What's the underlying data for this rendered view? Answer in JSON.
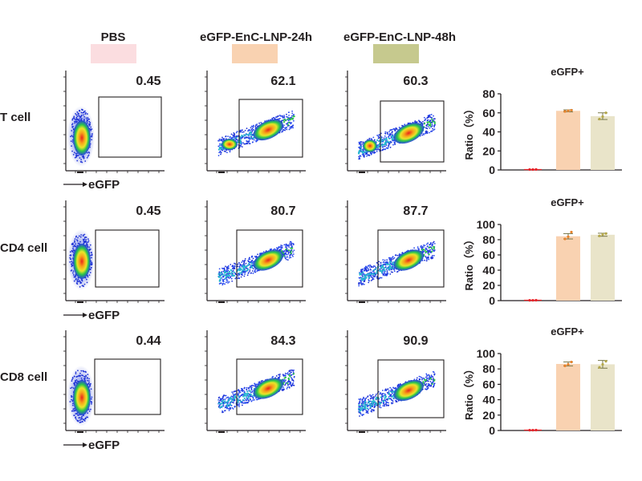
{
  "groups": [
    {
      "label": "PBS",
      "color": "#fbdde0"
    },
    {
      "label": "eGFP-EnC-LNP-24h",
      "color": "#f9d2b1"
    },
    {
      "label": "eGFP-EnC-LNP-48h",
      "color": "#c6c98e"
    }
  ],
  "row_labels": [
    "T cell",
    "CD4 cell",
    "CD8 cell"
  ],
  "axis_label": "eGFP",
  "flow_percentages": [
    [
      "0.45",
      "62.1",
      "60.3"
    ],
    [
      "0.45",
      "80.7",
      "87.7"
    ],
    [
      "0.44",
      "84.3",
      "90.9"
    ]
  ],
  "chart_data": [
    {
      "type": "bar",
      "title": "eGFP+",
      "ylabel": "Ratio（%）",
      "ylim": [
        0,
        80
      ],
      "yticks": [
        0,
        20,
        40,
        60,
        80
      ],
      "categories": [
        "PBS",
        "eGFP-EnC-LNP-24h",
        "eGFP-EnC-LNP-48h"
      ],
      "values": [
        0.45,
        62.1,
        56.5
      ],
      "errors": [
        0.05,
        1.0,
        3.5
      ],
      "points": [
        [
          0.4,
          0.45,
          0.5
        ],
        [
          61.5,
          62.2,
          62.8
        ],
        [
          53.5,
          56.0,
          60.0
        ]
      ],
      "colors": [
        "#fbdde0",
        "#f9d2b1",
        "#e9e4c9"
      ],
      "point_colors": [
        "#e8242a",
        "#e8822a",
        "#b5a84a"
      ]
    },
    {
      "type": "bar",
      "title": "eGFP+",
      "ylabel": "Ratio（%）",
      "ylim": [
        0,
        100
      ],
      "yticks": [
        0,
        20,
        40,
        60,
        80,
        100
      ],
      "categories": [
        "PBS",
        "eGFP-EnC-LNP-24h",
        "eGFP-EnC-LNP-48h"
      ],
      "values": [
        0.45,
        84.5,
        86.5
      ],
      "errors": [
        0.05,
        3.5,
        2.0
      ],
      "points": [
        [
          0.4,
          0.45,
          0.5
        ],
        [
          81.0,
          84.0,
          90.0
        ],
        [
          85.0,
          87.0,
          88.0
        ]
      ],
      "colors": [
        "#fbdde0",
        "#f9d2b1",
        "#e9e4c9"
      ],
      "point_colors": [
        "#e8242a",
        "#e8822a",
        "#b5a84a"
      ]
    },
    {
      "type": "bar",
      "title": "eGFP+",
      "ylabel": "Ratio（%）",
      "ylim": [
        0,
        100
      ],
      "yticks": [
        0,
        20,
        40,
        60,
        80,
        100
      ],
      "categories": [
        "PBS",
        "eGFP-EnC-LNP-24h",
        "eGFP-EnC-LNP-48h"
      ],
      "values": [
        0.44,
        86.5,
        86.0
      ],
      "errors": [
        0.05,
        2.5,
        5.0
      ],
      "points": [
        [
          0.4,
          0.44,
          0.5
        ],
        [
          84.0,
          86.0,
          89.0
        ],
        [
          82.0,
          86.0,
          90.0
        ]
      ],
      "colors": [
        "#fbdde0",
        "#f9d2b1",
        "#e9e4c9"
      ],
      "point_colors": [
        "#e8242a",
        "#e8822a",
        "#b5a84a"
      ]
    }
  ]
}
